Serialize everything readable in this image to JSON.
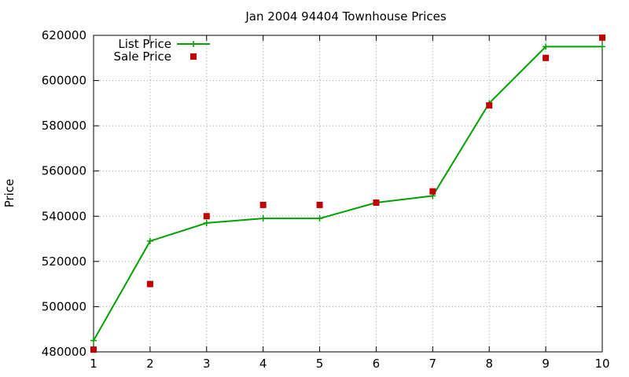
{
  "chart_data": {
    "type": "line",
    "title": "Jan 2004 94404 Townhouse Prices",
    "xlabel": "",
    "ylabel": "Price",
    "xlim": [
      1,
      10
    ],
    "ylim": [
      480000,
      620000
    ],
    "x_ticks": [
      1,
      2,
      3,
      4,
      5,
      6,
      7,
      8,
      9,
      10
    ],
    "y_ticks": [
      480000,
      500000,
      520000,
      540000,
      560000,
      580000,
      600000,
      620000
    ],
    "grid": true,
    "legend_position": "top-left",
    "series": [
      {
        "name": "List Price",
        "style": "line-with-plus-markers",
        "color": "#00a000",
        "x": [
          1,
          2,
          3,
          4,
          5,
          6,
          7,
          8,
          9,
          10
        ],
        "values": [
          485000,
          529000,
          537000,
          539000,
          539000,
          546000,
          549000,
          590000,
          615000,
          615000
        ]
      },
      {
        "name": "Sale Price",
        "style": "square-markers",
        "color": "#c00000",
        "x": [
          1,
          2,
          3,
          4,
          5,
          6,
          7,
          8,
          9,
          10
        ],
        "values": [
          481000,
          510000,
          540000,
          545000,
          545000,
          546000,
          551000,
          589000,
          610000,
          619000
        ]
      }
    ]
  }
}
